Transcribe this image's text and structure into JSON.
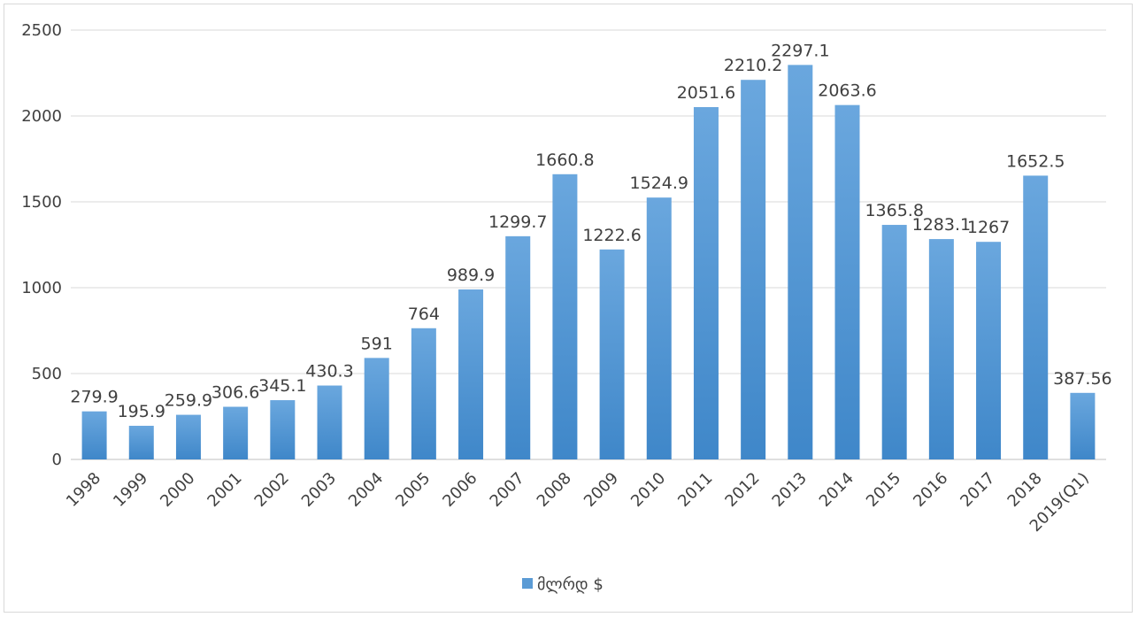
{
  "chart_data": {
    "type": "bar",
    "categories": [
      "1998",
      "1999",
      "2000",
      "2001",
      "2002",
      "2003",
      "2004",
      "2005",
      "2006",
      "2007",
      "2008",
      "2009",
      "2010",
      "2011",
      "2012",
      "2013",
      "2014",
      "2015",
      "2016",
      "2017",
      "2018",
      "2019(Q1)"
    ],
    "series": [
      {
        "name": "მლრდ $",
        "values": [
          279.9,
          195.9,
          259.9,
          306.6,
          345.1,
          430.3,
          591,
          764,
          989.9,
          1299.7,
          1660.8,
          1222.6,
          1524.9,
          2051.6,
          2210.2,
          2297.1,
          2063.6,
          1365.8,
          1283.1,
          1267,
          1652.5,
          387.56
        ],
        "data_labels": [
          "279.9",
          "195.9",
          "259.9",
          "306.6",
          "345.1",
          "430.3",
          "591",
          "764",
          "989.9",
          "1299.7",
          "1660.8",
          "1222.6",
          "1524.9",
          "2051.6",
          "2210.2",
          "2297.1",
          "2063.6",
          "1365.8",
          "1283.1",
          "1267",
          "1652.5",
          "387.56"
        ],
        "color": "#5b9bd5"
      }
    ],
    "title": "",
    "xlabel": "",
    "ylabel": "",
    "ylim": [
      0,
      2500
    ],
    "yticks": [
      0,
      500,
      1000,
      1500,
      2000,
      2500
    ],
    "grid": true,
    "legend_position": "bottom"
  }
}
